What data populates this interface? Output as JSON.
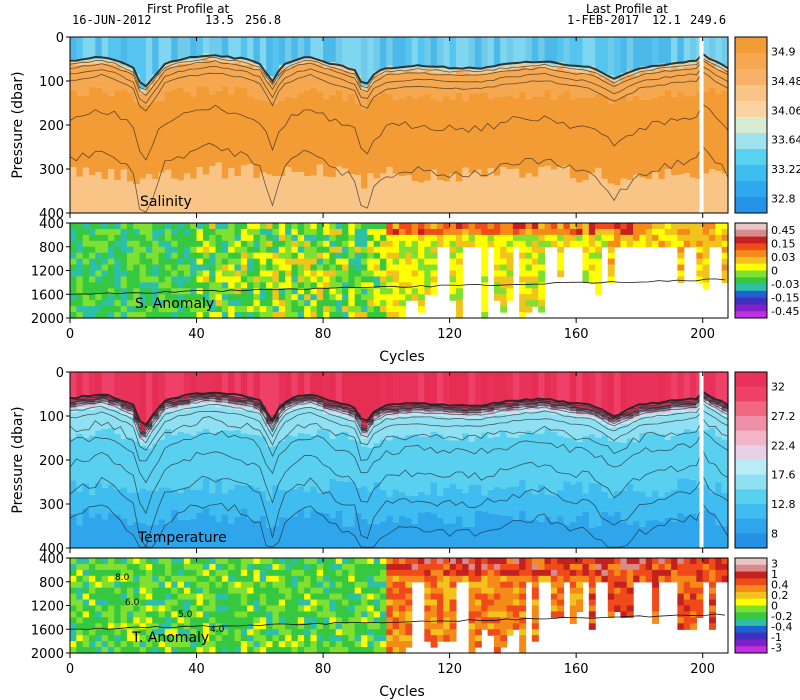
{
  "header": {
    "first_title": "First Profile at",
    "first_date": "16-JUN-2012",
    "first_lat": "13.5",
    "first_lon": "256.8",
    "last_title": "Last Profile at",
    "last_date": "1-FEB-2017",
    "last_lat": "12.1",
    "last_lon": "249.6"
  },
  "chart_data": [
    {
      "id": "salinity",
      "type": "heatmap",
      "label": "Salinity",
      "ylabel": "Pressure (dbar)",
      "xlim": [
        0,
        208
      ],
      "ylim": [
        400,
        0
      ],
      "y_ticks": [
        0,
        100,
        200,
        300,
        400
      ],
      "colorbar_labels": [
        "34.9",
        "34.48",
        "34.06",
        "33.64",
        "33.22",
        "32.8"
      ],
      "colorbar_colors": [
        "#f39c36",
        "#f5a84f",
        "#f7b267",
        "#f9c587",
        "#fbd3a3",
        "#d8ecd2",
        "#9fe3ef",
        "#58d2f0",
        "#3dbdf0",
        "#2ea8ee",
        "#2592e8"
      ],
      "mixed_layer_depth": [
        [
          0,
          55
        ],
        [
          5,
          50
        ],
        [
          10,
          45
        ],
        [
          15,
          55
        ],
        [
          20,
          70
        ],
        [
          23,
          120
        ],
        [
          26,
          95
        ],
        [
          30,
          60
        ],
        [
          35,
          50
        ],
        [
          40,
          45
        ],
        [
          45,
          40
        ],
        [
          50,
          45
        ],
        [
          55,
          50
        ],
        [
          60,
          60
        ],
        [
          64,
          100
        ],
        [
          67,
          65
        ],
        [
          72,
          50
        ],
        [
          76,
          45
        ],
        [
          80,
          55
        ],
        [
          85,
          65
        ],
        [
          90,
          75
        ],
        [
          93,
          115
        ],
        [
          96,
          85
        ],
        [
          100,
          70
        ],
        [
          110,
          65
        ],
        [
          120,
          70
        ],
        [
          130,
          70
        ],
        [
          140,
          60
        ],
        [
          150,
          55
        ],
        [
          158,
          65
        ],
        [
          165,
          70
        ],
        [
          172,
          95
        ],
        [
          180,
          70
        ],
        [
          190,
          60
        ],
        [
          198,
          55
        ],
        [
          200,
          40
        ],
        [
          205,
          60
        ],
        [
          208,
          70
        ]
      ]
    },
    {
      "id": "s-anomaly",
      "type": "heatmap",
      "label": "S. Anomaly",
      "xlim": [
        0,
        208
      ],
      "ylim": [
        2000,
        400
      ],
      "y_ticks": [
        400,
        800,
        1200,
        1600,
        2000
      ],
      "colorbar_labels": [
        "0.45",
        "0.15",
        "0.03",
        "0",
        "-0.03",
        "-0.15",
        "-0.45"
      ],
      "colorbar_colors": [
        "#e8c6c6",
        "#d98a8a",
        "#c42020",
        "#f04a1a",
        "#f58a18",
        "#f2c31c",
        "#ffff00",
        "#7fe030",
        "#35c840",
        "#2dc0a8",
        "#2060d0",
        "#4030c0",
        "#8020c8",
        "#c030e0"
      ]
    },
    {
      "id": "temperature",
      "type": "heatmap",
      "label": "Temperature",
      "ylabel": "Pressure (dbar)",
      "xlim": [
        0,
        208
      ],
      "ylim": [
        400,
        0
      ],
      "y_ticks": [
        0,
        100,
        200,
        300,
        400
      ],
      "colorbar_labels": [
        "32",
        "27.2",
        "22.4",
        "17.6",
        "12.8",
        "8"
      ],
      "colorbar_colors": [
        "#e8325a",
        "#ee4068",
        "#f06880",
        "#f090a8",
        "#f2b6c8",
        "#e8d0e6",
        "#b8ecf6",
        "#8fe0f2",
        "#5ad0f0",
        "#3fbcf0",
        "#2fa6ec",
        "#2590e6"
      ],
      "thermocline_depth": [
        [
          0,
          60
        ],
        [
          5,
          55
        ],
        [
          10,
          50
        ],
        [
          15,
          60
        ],
        [
          20,
          75
        ],
        [
          23,
          130
        ],
        [
          26,
          100
        ],
        [
          30,
          65
        ],
        [
          35,
          55
        ],
        [
          40,
          50
        ],
        [
          45,
          45
        ],
        [
          50,
          50
        ],
        [
          55,
          55
        ],
        [
          60,
          65
        ],
        [
          64,
          110
        ],
        [
          67,
          70
        ],
        [
          72,
          55
        ],
        [
          76,
          50
        ],
        [
          80,
          60
        ],
        [
          85,
          70
        ],
        [
          90,
          80
        ],
        [
          93,
          120
        ],
        [
          96,
          90
        ],
        [
          100,
          75
        ],
        [
          110,
          70
        ],
        [
          120,
          75
        ],
        [
          130,
          75
        ],
        [
          140,
          65
        ],
        [
          150,
          60
        ],
        [
          158,
          70
        ],
        [
          165,
          75
        ],
        [
          172,
          100
        ],
        [
          180,
          75
        ],
        [
          190,
          65
        ],
        [
          198,
          60
        ],
        [
          200,
          45
        ],
        [
          205,
          65
        ],
        [
          208,
          75
        ]
      ]
    },
    {
      "id": "t-anomaly",
      "type": "heatmap",
      "label": "T. Anomaly",
      "xlim": [
        0,
        208
      ],
      "ylim": [
        2000,
        400
      ],
      "y_ticks": [
        400,
        800,
        1200,
        1600,
        2000
      ],
      "contour_labels": [
        "8.0",
        "6.0",
        "5.0",
        "4.0"
      ],
      "colorbar_labels": [
        "3",
        "1",
        "0.4",
        "0.2",
        "0",
        "-0.2",
        "-0.4",
        "-1",
        "-3"
      ],
      "colorbar_colors": [
        "#e8c6c6",
        "#d98a8a",
        "#c42020",
        "#f04a1a",
        "#f58a18",
        "#f2c31c",
        "#ffff00",
        "#7fe030",
        "#35c840",
        "#2dc0a8",
        "#2060d0",
        "#4030c0",
        "#8020c8",
        "#c030e0"
      ]
    }
  ],
  "x_axis": {
    "label": "Cycles",
    "ticks": [
      0,
      40,
      80,
      120,
      160,
      200
    ]
  }
}
